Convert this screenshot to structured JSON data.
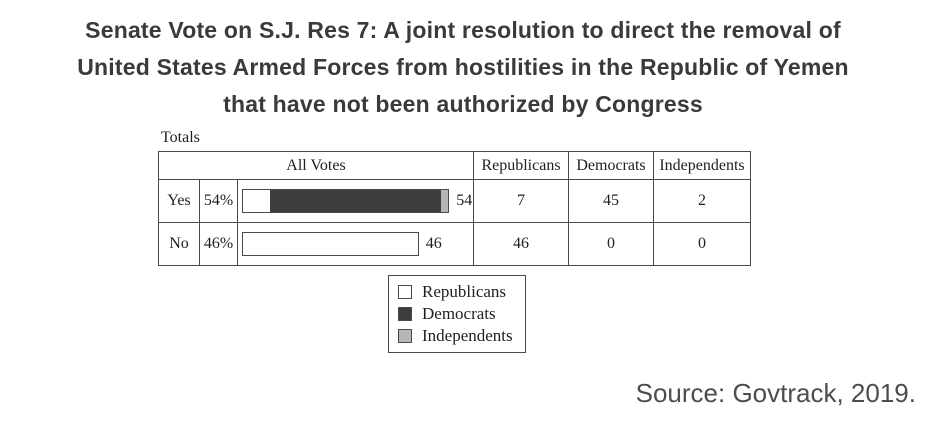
{
  "title": {
    "lines": [
      "Senate Vote on S.J. Res 7: A joint resolution to direct the removal of",
      "United States Armed Forces from hostilities in the Republic of Yemen",
      "that have not been authorized by Congress"
    ]
  },
  "totals_label": "Totals",
  "table": {
    "headers": {
      "all_votes": "All Votes",
      "republicans": "Republicans",
      "democrats": "Democrats",
      "independents": "Independents"
    },
    "rows": [
      {
        "label": "Yes",
        "percent": "54%",
        "total": 54,
        "republicans": 7,
        "democrats": 45,
        "independents": 2
      },
      {
        "label": "No",
        "percent": "46%",
        "total": 46,
        "republicans": 46,
        "democrats": 0,
        "independents": 0
      }
    ]
  },
  "legend": {
    "items": [
      {
        "label": "Republicans",
        "color": "#ffffff"
      },
      {
        "label": "Democrats",
        "color": "#3d3d3d"
      },
      {
        "label": "Independents",
        "color": "#b5b5b5"
      }
    ]
  },
  "source": "Source: Govtrack, 2019.",
  "colors": {
    "republican_fill": "#ffffff",
    "democrat_fill": "#3d3d3d",
    "independent_fill": "#b5b5b5",
    "border": "#4a4a4a"
  },
  "chart_data": {
    "type": "bar",
    "orientation": "horizontal",
    "title": "Senate Vote on S.J. Res 7: A joint resolution to direct the removal of United States Armed Forces from hostilities in the Republic of Yemen that have not been authorized by Congress",
    "subtitle": "Totals",
    "categories": [
      "Yes",
      "No"
    ],
    "totals": [
      54,
      46
    ],
    "percentages": [
      "54%",
      "46%"
    ],
    "series": [
      {
        "name": "Republicans",
        "values": [
          7,
          46
        ],
        "color": "#ffffff"
      },
      {
        "name": "Democrats",
        "values": [
          45,
          0
        ],
        "color": "#3d3d3d"
      },
      {
        "name": "Independents",
        "values": [
          2,
          0
        ],
        "color": "#b5b5b5"
      }
    ],
    "data_labels": [
      54,
      46
    ],
    "legend_position": "bottom-center",
    "source": "Source: Govtrack, 2019."
  }
}
